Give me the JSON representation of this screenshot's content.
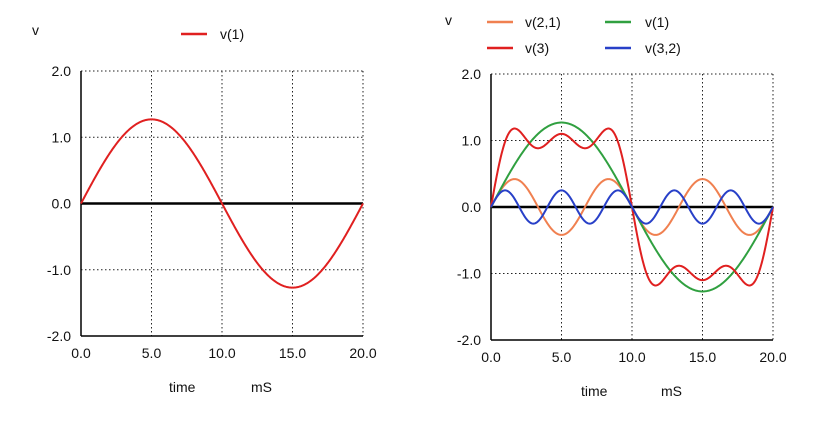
{
  "chart_data": [
    {
      "type": "line",
      "ylabel": "v",
      "xlabel": "time",
      "xunit": "mS",
      "xlim": [
        0,
        20
      ],
      "ylim": [
        -2,
        2
      ],
      "x_ticks": [
        "0.0",
        "5.0",
        "10.0",
        "15.0",
        "20.0"
      ],
      "y_ticks": [
        "2.0",
        "1.0",
        "0.0",
        "-1.0",
        "-2.0"
      ],
      "grid": "dotted",
      "legend_position": "top",
      "series": [
        {
          "name": "v(1)",
          "color": "#e02020",
          "amplitude": 1.27,
          "harmonic": 1
        }
      ]
    },
    {
      "type": "line",
      "ylabel": "v",
      "xlabel": "time",
      "xunit": "mS",
      "xlim": [
        0,
        20
      ],
      "ylim": [
        -2,
        2
      ],
      "x_ticks": [
        "0.0",
        "5.0",
        "10.0",
        "15.0",
        "20.0"
      ],
      "y_ticks": [
        "2.0",
        "1.0",
        "0.0",
        "-1.0",
        "-2.0"
      ],
      "grid": "dotted",
      "legend_position": "top",
      "series": [
        {
          "name": "v(2,1)",
          "color": "#f08050",
          "amplitude": 0.42,
          "harmonic": 3
        },
        {
          "name": "v(1)",
          "color": "#30a040",
          "amplitude": 1.27,
          "harmonic": 1
        },
        {
          "name": "v(3)",
          "color": "#e02020",
          "composite": [
            "v(1)",
            "v(2,1)",
            "v(3,2)"
          ]
        },
        {
          "name": "v(3,2)",
          "color": "#2840c8",
          "amplitude": 0.25,
          "harmonic": 5
        }
      ]
    }
  ]
}
